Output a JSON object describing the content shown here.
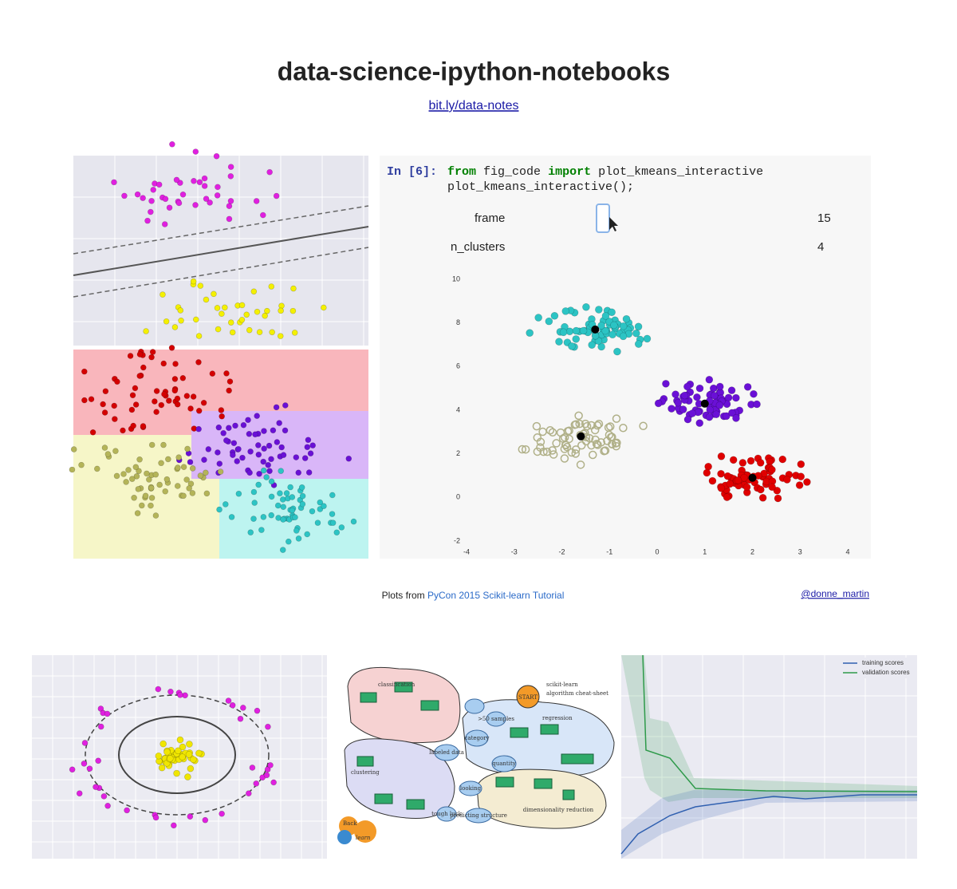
{
  "header": {
    "title": "data-science-ipython-notebooks",
    "link": "bit.ly/data-notes"
  },
  "notebook": {
    "prompt": "In [6]:",
    "code": [
      [
        "from",
        "fig_code",
        "import",
        "plot_kmeans_interactive"
      ],
      [
        "plot_kmeans_interactive();"
      ]
    ],
    "widgets": [
      {
        "label": "frame",
        "value": 15
      },
      {
        "label": "n_clusters",
        "value": 4
      }
    ]
  },
  "kmeans_plot": {
    "xticks": [
      -4,
      -3,
      -2,
      -1,
      0,
      1,
      2,
      3,
      4
    ],
    "yticks": [
      -2,
      0,
      2,
      4,
      6,
      8,
      10
    ],
    "clusters": [
      {
        "center": [
          -1.3,
          7.7
        ],
        "color": "#2cc4c4"
      },
      {
        "center": [
          1,
          4.3
        ],
        "color": "#6a10d6"
      },
      {
        "center": [
          2,
          0.9
        ],
        "color": "#e00000"
      },
      {
        "center": [
          -1.6,
          2.8
        ],
        "color": "#b0b088"
      }
    ]
  },
  "caption": {
    "prefix": "Plots from",
    "link": "PyCon 2015 Scikit-learn Tutorial",
    "author": "@donne_martin"
  },
  "cheat_sheet": {
    "title": [
      "scikit-learn",
      "algorithm cheat-sheet"
    ],
    "start": "START",
    "groups": [
      "classification",
      "regression",
      "clustering",
      "dimensionality reduction"
    ],
    "nodes": [
      ">50 samples",
      "category",
      "quantity",
      "labeled data",
      "looking",
      "tough luck",
      "predicting structure"
    ],
    "logo": [
      "Back",
      "learn"
    ]
  },
  "learning_curve": {
    "legend": [
      "training scores",
      "validation scores"
    ]
  }
}
